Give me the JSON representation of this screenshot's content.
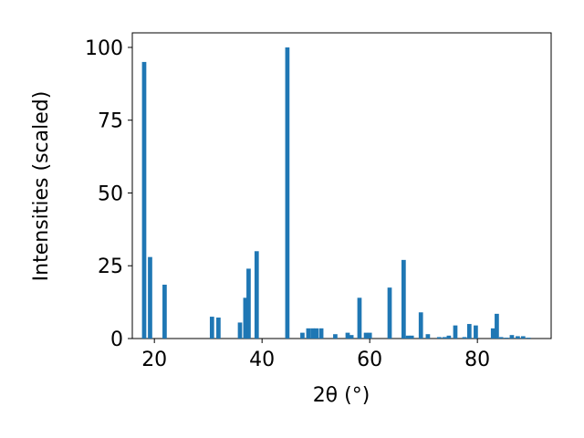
{
  "chart_data": {
    "type": "bar",
    "x_label": "2θ (°)",
    "y_label": "Intensities (scaled)",
    "x": [
      18.1,
      19.2,
      21.9,
      30.7,
      31.9,
      35.9,
      36.9,
      37.5,
      39.0,
      44.7,
      47.5,
      48.6,
      49.4,
      50.1,
      51.0,
      53.6,
      55.9,
      56.6,
      58.1,
      59.3,
      60.0,
      63.7,
      66.3,
      67.1,
      67.8,
      69.5,
      70.8,
      72.9,
      73.9,
      74.7,
      75.9,
      77.6,
      78.5,
      79.7,
      82.9,
      83.6,
      84.4,
      85.4,
      86.4,
      87.5,
      88.5,
      89.5
    ],
    "values": [
      95,
      28,
      18.5,
      7.5,
      7.2,
      5.5,
      14,
      24,
      30,
      100,
      2,
      3.5,
      3.5,
      3.5,
      3.5,
      1.5,
      2,
      1.2,
      14,
      2,
      2,
      17.5,
      27,
      1,
      1,
      9,
      1.5,
      0.5,
      0.5,
      1,
      4.5,
      0.5,
      5,
      4.5,
      3.5,
      8.5,
      0.5,
      0.3,
      1.2,
      0.8,
      0.8,
      0.3
    ],
    "color": "#1f77b4",
    "xlim": [
      15.9,
      93.7
    ],
    "xticks": [
      20,
      40,
      60,
      80
    ],
    "ylim": [
      0,
      105
    ],
    "yticks": [
      0,
      25,
      50,
      75,
      100
    ]
  }
}
